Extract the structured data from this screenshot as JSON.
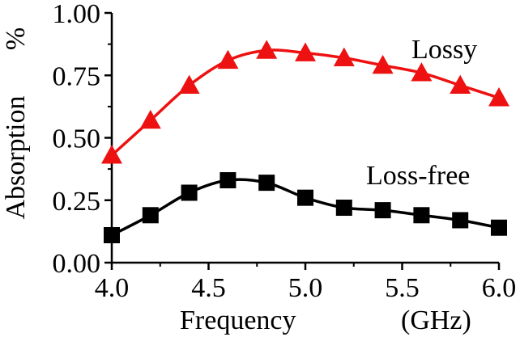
{
  "chart_data": {
    "type": "line",
    "title": "",
    "xlabel": "Frequency",
    "xunit": "(GHz)",
    "ylabel": "Absorption",
    "yunit": "%",
    "xlim": [
      4.0,
      6.0
    ],
    "ylim": [
      0.0,
      1.0
    ],
    "x_ticks": [
      "4.0",
      "4.5",
      "5.0",
      "5.5",
      "6.0"
    ],
    "y_ticks": [
      "0.00",
      "0.25",
      "0.50",
      "0.75",
      "1.00"
    ],
    "grid": false,
    "legend": "inline labels next to each series",
    "x": [
      4.0,
      4.2,
      4.4,
      4.6,
      4.8,
      5.0,
      5.2,
      5.4,
      5.6,
      5.8,
      6.0
    ],
    "series": [
      {
        "name": "Lossy",
        "color": "#ee1111",
        "marker": "triangle",
        "values": [
          0.43,
          0.57,
          0.71,
          0.81,
          0.85,
          0.84,
          0.82,
          0.79,
          0.76,
          0.71,
          0.66
        ]
      },
      {
        "name": "Loss-free",
        "color": "#000000",
        "marker": "square",
        "values": [
          0.11,
          0.19,
          0.28,
          0.33,
          0.32,
          0.26,
          0.22,
          0.21,
          0.19,
          0.17,
          0.14
        ]
      }
    ]
  }
}
